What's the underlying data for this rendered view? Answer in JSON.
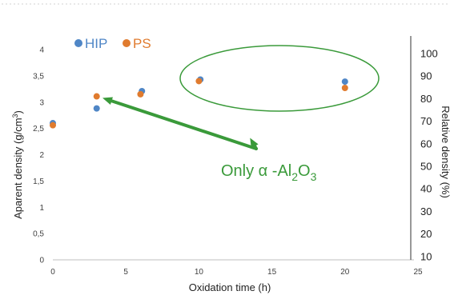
{
  "chart_data": {
    "type": "scatter",
    "xlabel": "Oxidation time (h)",
    "ylabel": "Aparent density (g/cm",
    "ylabel_sup": "3",
    "ylabel_end": ")",
    "y2label": "Relative density (%)",
    "xlim": [
      0,
      25
    ],
    "ylim": [
      0,
      4
    ],
    "y2lim": [
      0,
      100
    ],
    "x_ticks": [
      "0",
      "5",
      "10",
      "15",
      "20",
      "25"
    ],
    "y_ticks": [
      "0",
      "0,5",
      "1",
      "1,5",
      "2",
      "2,5",
      "3",
      "3,5",
      "4"
    ],
    "y2_ticks": [
      "10",
      "20",
      "30",
      "40",
      "50",
      "60",
      "70",
      "80",
      "90",
      "100"
    ],
    "grid": false,
    "legend_position": "top-left",
    "series": [
      {
        "name": "HIP",
        "color": "#4f86c6",
        "points": [
          {
            "x": 0,
            "y": 2.6
          },
          {
            "x": 3,
            "y": 2.88
          },
          {
            "x": 6.1,
            "y": 3.21
          },
          {
            "x": 10.1,
            "y": 3.43
          },
          {
            "x": 20,
            "y": 3.39
          }
        ]
      },
      {
        "name": "PS",
        "color": "#e07b2e",
        "points": [
          {
            "x": 0,
            "y": 2.56
          },
          {
            "x": 3,
            "y": 3.11
          },
          {
            "x": 6,
            "y": 3.15
          },
          {
            "x": 10,
            "y": 3.4
          },
          {
            "x": 20,
            "y": 3.27
          }
        ]
      }
    ],
    "annotation": {
      "text_main": "Only α -Al",
      "sub1": "2",
      "text_mid": "O",
      "sub2": "3",
      "color": "#3a9a3a",
      "arrow_targets": [
        {
          "x": 3.4,
          "y": 3.08
        },
        {
          "x": 13.5,
          "y": 2.32
        }
      ]
    }
  }
}
